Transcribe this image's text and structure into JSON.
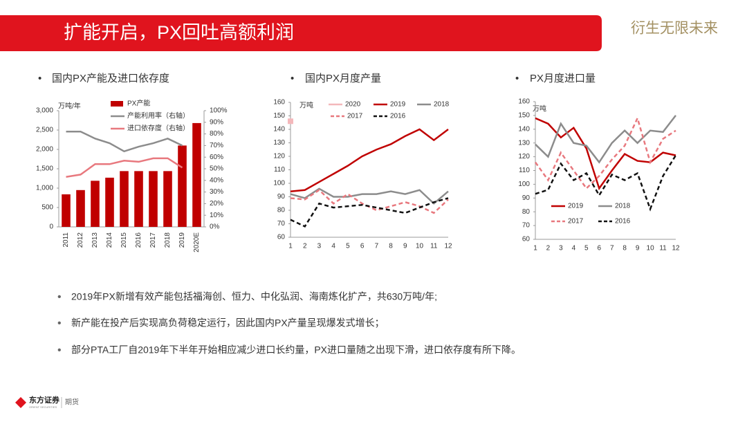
{
  "header": {
    "title": "扩能开启，PX回吐高额利润",
    "slogan": "衍生无限未来"
  },
  "section_titles": [
    "国内PX产能及进口依存度",
    "国内PX月度产量",
    "PX月度进口量"
  ],
  "chart_data": [
    {
      "type": "bar",
      "y_label": "万吨/年",
      "categories": [
        "2011",
        "2012",
        "2013",
        "2014",
        "2015",
        "2016",
        "2017",
        "2018",
        "2019",
        "2020E"
      ],
      "series": [
        {
          "name": "PX产能",
          "color": "#c00000",
          "values": [
            840,
            950,
            1190,
            1270,
            1440,
            1440,
            1440,
            1440,
            2100,
            2680
          ]
        },
        {
          "name": "产能利用率（右轴）",
          "color": "#8c8c8c",
          "axis": "y2",
          "values": [
            82,
            82,
            76,
            72,
            65,
            69,
            72,
            76,
            70,
            null
          ]
        },
        {
          "name": "进口依存度（右轴）",
          "color": "#e8787e",
          "axis": "y2",
          "values": [
            43,
            45,
            54,
            54,
            57,
            56,
            59,
            59,
            51,
            null
          ]
        }
      ],
      "ylim": [
        0,
        3000
      ],
      "yticks": [
        0,
        500,
        {
          "value": 1000,
          "label": "1,000"
        },
        {
          "value": 1500,
          "label": "1,500"
        },
        {
          "value": 2000,
          "label": "2,000"
        },
        {
          "value": 2500,
          "label": "2,500"
        },
        {
          "value": 3000,
          "label": "3,000"
        }
      ],
      "y2lim": [
        0,
        100
      ],
      "y2ticks": [
        {
          "value": 0,
          "label": "0%"
        },
        {
          "value": 10,
          "label": "10%"
        },
        {
          "value": 20,
          "label": "20%"
        },
        {
          "value": 30,
          "label": "30%"
        },
        {
          "value": 40,
          "label": "40%"
        },
        {
          "value": 50,
          "label": "50%"
        },
        {
          "value": 60,
          "label": "60%"
        },
        {
          "value": 70,
          "label": "70%"
        },
        {
          "value": 80,
          "label": "80%"
        },
        {
          "value": 90,
          "label": "90%"
        },
        {
          "value": 100,
          "label": "100%"
        }
      ]
    },
    {
      "type": "line",
      "y_label": "万吨",
      "categories": [
        "1",
        "2",
        "3",
        "4",
        "5",
        "6",
        "7",
        "8",
        "9",
        "10",
        "11",
        "12"
      ],
      "series": [
        {
          "name": "2020",
          "color": "#f4b8bb",
          "dash": false,
          "values": [
            146,
            null,
            null,
            null,
            null,
            null,
            null,
            null,
            null,
            null,
            null,
            null
          ]
        },
        {
          "name": "2019",
          "color": "#c00000",
          "dash": false,
          "values": [
            94,
            95,
            101,
            107,
            113,
            120,
            125,
            129,
            135,
            140,
            132,
            140
          ]
        },
        {
          "name": "2018",
          "color": "#8c8c8c",
          "dash": false,
          "values": [
            92,
            89,
            96,
            90,
            90,
            92,
            92,
            94,
            92,
            95,
            85,
            94
          ]
        },
        {
          "name": "2017",
          "color": "#e8787e",
          "dash": true,
          "values": [
            89,
            88,
            95,
            85,
            92,
            85,
            80,
            83,
            86,
            83,
            78,
            88
          ]
        },
        {
          "name": "2016",
          "color": "#111111",
          "dash": true,
          "values": [
            73,
            68,
            85,
            82,
            83,
            84,
            82,
            80,
            78,
            82,
            86,
            89
          ]
        }
      ],
      "ylim": [
        60,
        160
      ],
      "yticks": [
        60,
        70,
        80,
        90,
        100,
        110,
        120,
        130,
        140,
        150,
        160
      ]
    },
    {
      "type": "line",
      "y_label": "万吨",
      "categories": [
        "1",
        "2",
        "3",
        "4",
        "5",
        "6",
        "7",
        "8",
        "9",
        "10",
        "11",
        "12"
      ],
      "series": [
        {
          "name": "2019",
          "color": "#c00000",
          "dash": false,
          "values": [
            148,
            144,
            134,
            141,
            126,
            97,
            110,
            122,
            117,
            116,
            123,
            121
          ]
        },
        {
          "name": "2018",
          "color": "#8c8c8c",
          "dash": false,
          "values": [
            129,
            120,
            144,
            130,
            128,
            116,
            130,
            139,
            130,
            139,
            138,
            150
          ]
        },
        {
          "name": "2017",
          "color": "#e8787e",
          "dash": true,
          "values": [
            116,
            103,
            123,
            110,
            97,
            106,
            118,
            128,
            148,
            116,
            133,
            139
          ]
        },
        {
          "name": "2016",
          "color": "#111111",
          "dash": true,
          "values": [
            93,
            96,
            115,
            103,
            108,
            92,
            107,
            103,
            108,
            82,
            106,
            121
          ]
        }
      ],
      "ylim": [
        60,
        160
      ],
      "yticks": [
        60,
        70,
        80,
        90,
        100,
        110,
        120,
        130,
        140,
        150,
        160
      ]
    }
  ],
  "bullets": [
    "2019年PX新增有效产能包括福海创、恒力、中化弘润、海南炼化扩产，共630万吨/年;",
    "新产能在投产后实现高负荷稳定运行，因此国内PX产量呈现爆发式增长；",
    "部分PTA工厂自2019年下半年开始相应减少进口长约量，PX进口量随之出现下滑，进口依存度有所下降。"
  ],
  "footer": {
    "brand": "东方证券",
    "brand_en": "ORIENT SECURITIES",
    "division": "期货"
  }
}
